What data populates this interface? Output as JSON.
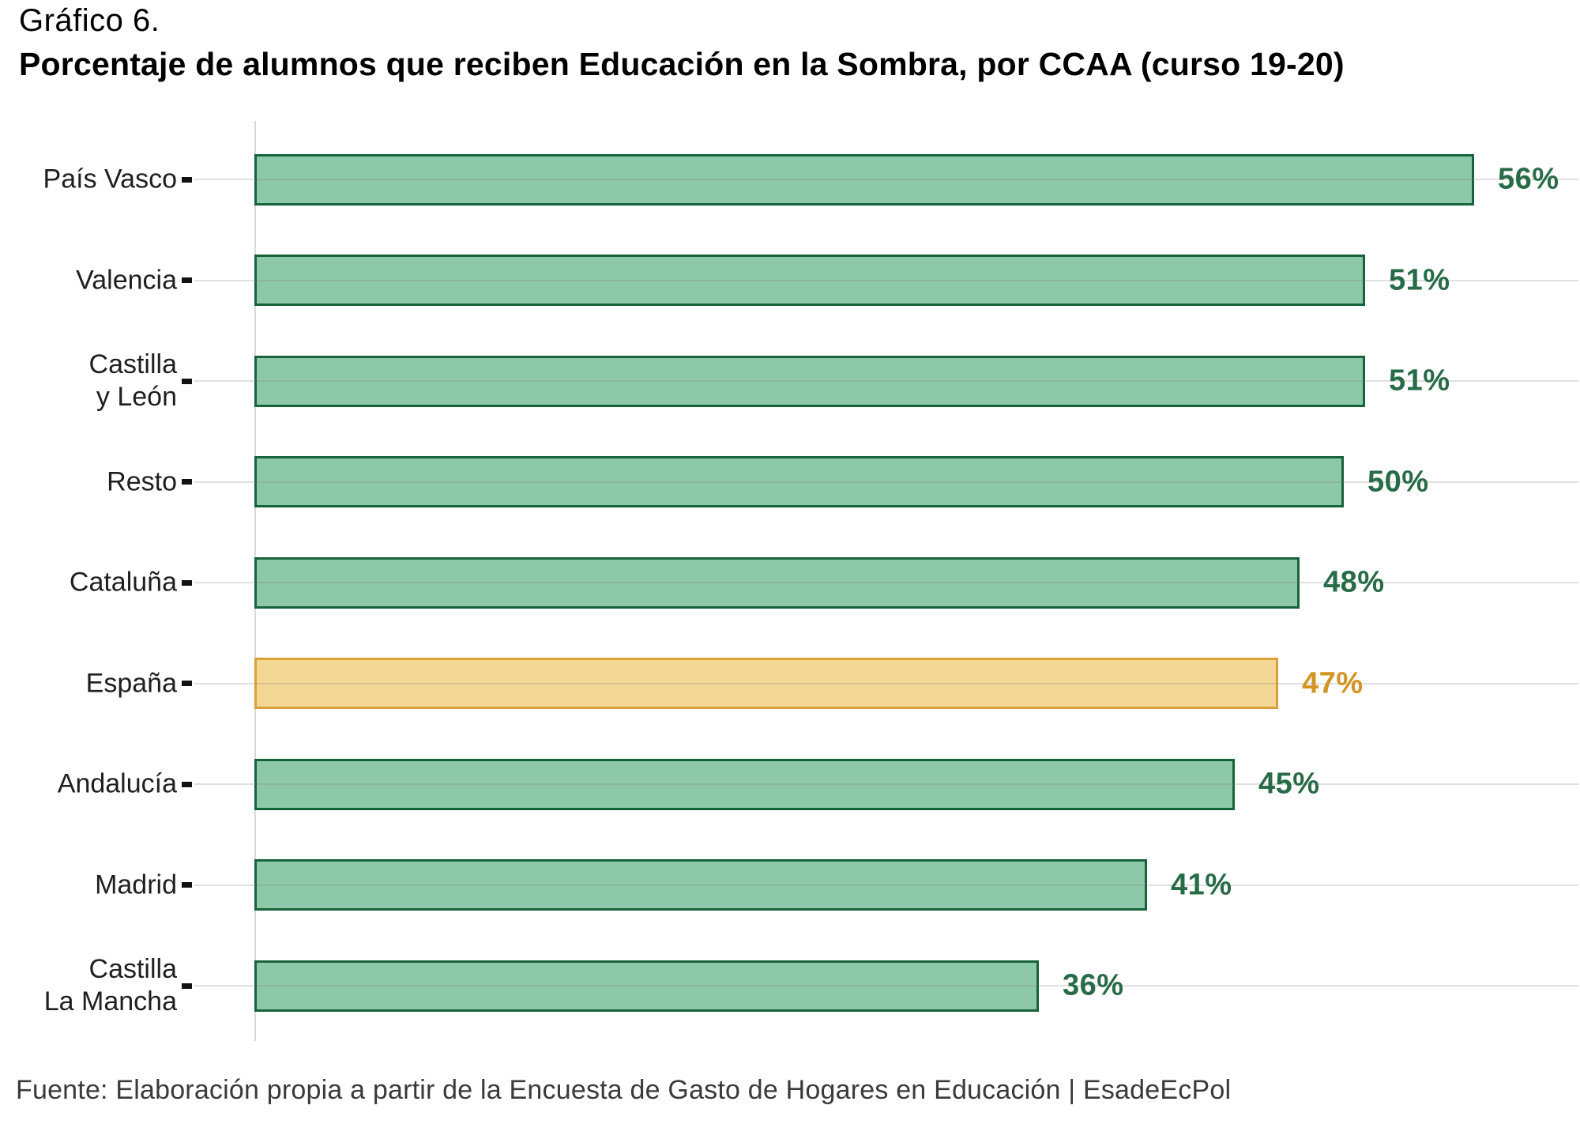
{
  "header": {
    "title_prefix": "Gráfico 6.",
    "title": "Porcentaje de alumnos que reciben Educación en la Sombra, por CCAA (curso 19-20)"
  },
  "footer": {
    "source": "Fuente: Elaboración propia a partir de la Encuesta de Gasto de Hogares en Educación | EsadeEcPol"
  },
  "chart_data": {
    "type": "bar",
    "orientation": "horizontal",
    "title": "Porcentaje de alumnos que reciben Educación en la Sombra, por CCAA (curso 19-20)",
    "xlabel": "",
    "ylabel": "",
    "categories": [
      "País Vasco",
      "Valencia",
      "Castilla\ny León",
      "Resto",
      "Cataluña",
      "España",
      "Andalucía",
      "Madrid",
      "Castilla\nLa Mancha"
    ],
    "values": [
      56,
      51,
      51,
      50,
      48,
      47,
      45,
      41,
      36
    ],
    "value_labels": [
      "56%",
      "51%",
      "51%",
      "50%",
      "48%",
      "47%",
      "45%",
      "41%",
      "36%"
    ],
    "unit": "%",
    "xlim": [
      0,
      60
    ],
    "grid": true,
    "legend": false,
    "highlight_category": "España",
    "highlight_index": 5,
    "colors": {
      "bar_fill": "#8dc8a8",
      "bar_border": "#17633b",
      "value_text": "#276b47",
      "highlight_fill": "#f2d795",
      "highlight_border": "#d9a138",
      "highlight_value_text": "#d39421",
      "gridline_rgba": "rgba(125,125,125,0.24)",
      "axis_line": "#d9d9d9",
      "tick": "#111111",
      "label_text": "#1f1f1f",
      "title_text": "#000000",
      "source_text": "#3a3a3a"
    }
  }
}
